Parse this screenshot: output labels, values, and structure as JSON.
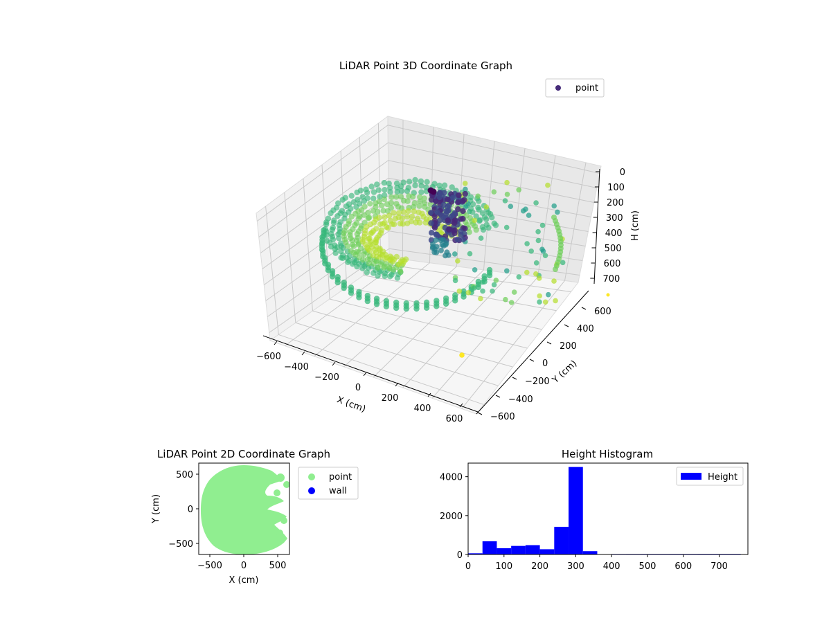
{
  "chart_data": [
    {
      "type": "scatter",
      "title": "LiDAR Point 3D Coordinate Graph",
      "xlabel": "X (cm)",
      "ylabel": "Y (cm)",
      "zlabel": "H (cm)",
      "xlim": [
        -650,
        650
      ],
      "ylim": [
        -650,
        650
      ],
      "zlim": [
        750,
        0
      ],
      "xticks": [
        "−600",
        "−400",
        "−200",
        "0",
        "200",
        "400",
        "600"
      ],
      "yticks": [
        "−600",
        "−400",
        "−200",
        "0",
        "200",
        "400",
        "600"
      ],
      "zticks": [
        "0",
        "100",
        "200",
        "300",
        "400",
        "500",
        "600",
        "700"
      ],
      "legend": [
        "point"
      ],
      "legend_loc": "upper-right",
      "grid": true,
      "colormap": "viridis"
    },
    {
      "type": "scatter",
      "title": "LiDAR Point 2D Coordinate Graph",
      "xlabel": "X (cm)",
      "ylabel": "Y (cm)",
      "xlim": [
        -650,
        650
      ],
      "ylim": [
        -650,
        650
      ],
      "xticks": [
        "−500",
        "0",
        "500"
      ],
      "yticks": [
        "500",
        "0",
        "−500"
      ],
      "series": [
        {
          "name": "point",
          "color": "#90ee90"
        },
        {
          "name": "wall",
          "color": "#0000ff"
        }
      ],
      "legend_loc": "outside-right"
    },
    {
      "type": "bar",
      "title": "Height Histogram",
      "legend": [
        "Height"
      ],
      "legend_loc": "upper-right",
      "color": "#0000ff",
      "bin_width": 40,
      "bins": [
        {
          "start": 0,
          "count": 60
        },
        {
          "start": 40,
          "count": 680
        },
        {
          "start": 80,
          "count": 320
        },
        {
          "start": 120,
          "count": 440
        },
        {
          "start": 160,
          "count": 480
        },
        {
          "start": 200,
          "count": 270
        },
        {
          "start": 240,
          "count": 1420
        },
        {
          "start": 280,
          "count": 4500
        },
        {
          "start": 320,
          "count": 170
        },
        {
          "start": 360,
          "count": 0
        },
        {
          "start": 400,
          "count": 5
        },
        {
          "start": 440,
          "count": 4
        },
        {
          "start": 480,
          "count": 3
        },
        {
          "start": 520,
          "count": 3
        },
        {
          "start": 560,
          "count": 2
        },
        {
          "start": 600,
          "count": 2
        },
        {
          "start": 640,
          "count": 1
        },
        {
          "start": 680,
          "count": 1
        },
        {
          "start": 720,
          "count": 1
        }
      ],
      "xlim": [
        0,
        780
      ],
      "ylim": [
        0,
        4700
      ],
      "xticks": [
        "0",
        "100",
        "200",
        "300",
        "400",
        "500",
        "600",
        "700"
      ],
      "yticks": [
        "0",
        "2000",
        "4000"
      ]
    }
  ]
}
